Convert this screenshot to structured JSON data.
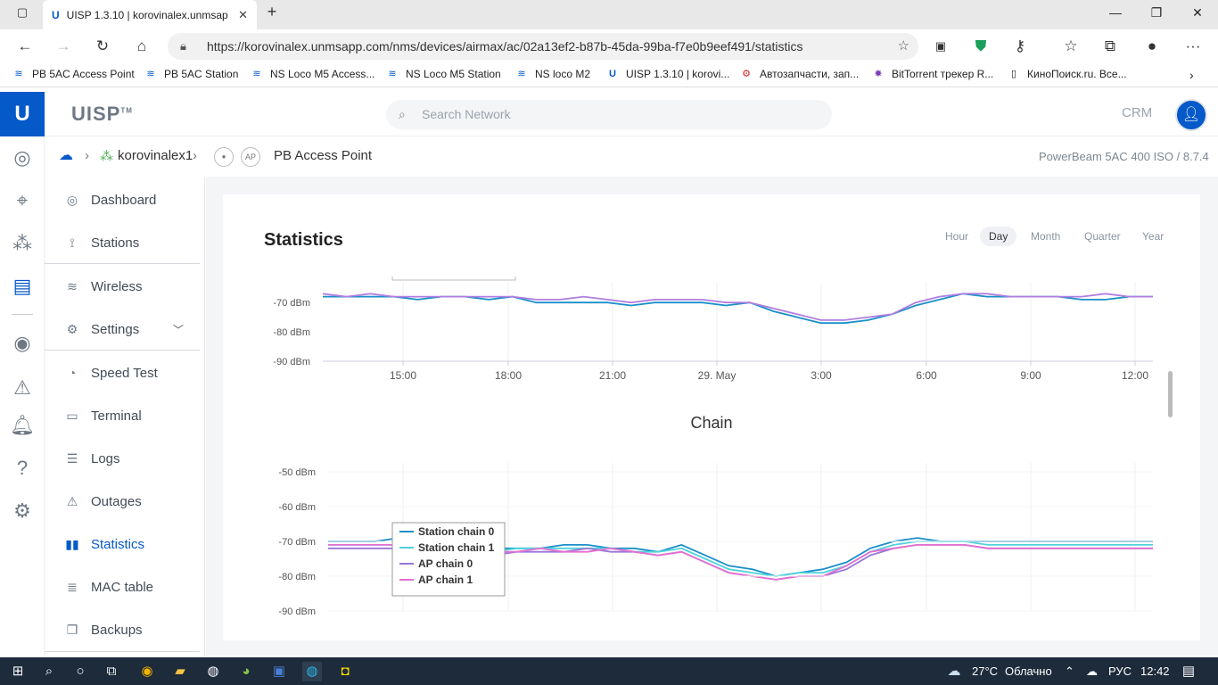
{
  "browser": {
    "tab_title": "UISP 1.3.10 | korovinalex.unmsap",
    "url": "https://korovinalex.unmsapp.com/nms/devices/airmax/ac/02a13ef2-b87b-45da-99ba-f7e0b9eef491/statistics",
    "bookmarks": [
      {
        "label": "PB 5AC Access Point",
        "icon": "wifi-icon"
      },
      {
        "label": "PB 5AC Station",
        "icon": "wifi-icon"
      },
      {
        "label": "NS Loco M5 Access...",
        "icon": "wifi-icon"
      },
      {
        "label": "NS Loco M5 Station",
        "icon": "wifi-icon"
      },
      {
        "label": "NS loco M2",
        "icon": "wifi-icon"
      },
      {
        "label": "UISP 1.3.10 | korovi...",
        "icon": "uisp-icon"
      },
      {
        "label": "Автозапчасти, зап...",
        "icon": "gear-icon"
      },
      {
        "label": "BitTorrent трекер R...",
        "icon": "star-icon"
      },
      {
        "label": "КиноПоиск.ru. Все...",
        "icon": "page-icon"
      }
    ]
  },
  "app": {
    "brand": "UISP",
    "brand_mark": "TM",
    "search_placeholder": "Search Network",
    "crm_label": "CRM",
    "accent": "#0559c9"
  },
  "breadcrumb": {
    "site": "korovinalex1",
    "badge": "AP",
    "device": "PB Access Point",
    "model": "PowerBeam 5AC 400 ISO / 8.7.4"
  },
  "menu": [
    {
      "label": "Dashboard",
      "icon": "dashboard-icon"
    },
    {
      "label": "Stations",
      "icon": "stations-icon"
    },
    {
      "label": "Wireless",
      "icon": "wireless-icon"
    },
    {
      "label": "Settings",
      "icon": "settings-icon"
    },
    {
      "label": "Speed Test",
      "icon": "speedtest-icon"
    },
    {
      "label": "Terminal",
      "icon": "terminal-icon"
    },
    {
      "label": "Logs",
      "icon": "logs-icon"
    },
    {
      "label": "Outages",
      "icon": "outages-icon"
    },
    {
      "label": "Statistics",
      "icon": "statistics-icon",
      "active": true
    },
    {
      "label": "MAC table",
      "icon": "mactable-icon"
    },
    {
      "label": "Backups",
      "icon": "backups-icon"
    }
  ],
  "statistics": {
    "title": "Statistics",
    "ranges": [
      "Hour",
      "Day",
      "Month",
      "Quarter",
      "Year"
    ],
    "active_range": "Day"
  },
  "chart_data": [
    {
      "type": "line",
      "title": "",
      "ylabel": "",
      "y_ticks": [
        "-70 dBm",
        "-80 dBm",
        "-90 dBm"
      ],
      "x_ticks": [
        "15:00",
        "18:00",
        "21:00",
        "29. May",
        "3:00",
        "6:00",
        "9:00",
        "12:00"
      ],
      "series": [
        {
          "color": "#1a8fc9",
          "values": [
            -68,
            -68,
            -68,
            -68,
            -69,
            -68,
            -68,
            -69,
            -68,
            -70,
            -70,
            -70,
            -70,
            -71,
            -70,
            -70,
            -70,
            -71,
            -70,
            -73,
            -75,
            -77,
            -77,
            -76,
            -74,
            -71,
            -69,
            -67,
            -68,
            -68,
            -68,
            -68,
            -69,
            -69,
            -68,
            -68
          ]
        },
        {
          "color": "#b07ee0",
          "values": [
            -67,
            -68,
            -67,
            -68,
            -68,
            -68,
            -68,
            -68,
            -68,
            -69,
            -69,
            -68,
            -69,
            -70,
            -69,
            -69,
            -69,
            -70,
            -70,
            -72,
            -74,
            -76,
            -76,
            -75,
            -74,
            -70,
            -68,
            -67,
            -67,
            -68,
            -68,
            -68,
            -68,
            -67,
            -68,
            -68
          ]
        }
      ]
    },
    {
      "type": "line",
      "title": "Chain",
      "y_ticks": [
        "-50 dBm",
        "-60 dBm",
        "-70 dBm",
        "-80 dBm",
        "-90 dBm"
      ],
      "legend": "top-left",
      "series": [
        {
          "name": "Station chain 0",
          "color": "#1a8fc9",
          "values": [
            -70,
            -70,
            -70,
            -69,
            -70,
            -71,
            -71,
            -72,
            -72,
            -72,
            -71,
            -71,
            -72,
            -72,
            -73,
            -71,
            -74,
            -77,
            -78,
            -80,
            -79,
            -78,
            -76,
            -72,
            -70,
            -69,
            -70,
            -70,
            -70,
            -70,
            -70,
            -70,
            -70,
            -70,
            -70,
            -70
          ]
        },
        {
          "name": "Station chain 1",
          "color": "#4fd3db",
          "values": [
            -71,
            -71,
            -71,
            -71,
            -71,
            -72,
            -72,
            -73,
            -72,
            -72,
            -72,
            -72,
            -72,
            -73,
            -73,
            -72,
            -75,
            -78,
            -79,
            -80,
            -79,
            -79,
            -77,
            -73,
            -71,
            -70,
            -70,
            -70,
            -71,
            -71,
            -71,
            -71,
            -71,
            -71,
            -71,
            -71
          ]
        },
        {
          "name": "AP chain 0",
          "color": "#9b76d8",
          "values": [
            -72,
            -72,
            -72,
            -72,
            -72,
            -73,
            -73,
            -74,
            -73,
            -73,
            -73,
            -72,
            -73,
            -73,
            -74,
            -73,
            -76,
            -79,
            -80,
            -81,
            -80,
            -80,
            -78,
            -74,
            -72,
            -71,
            -71,
            -71,
            -72,
            -72,
            -72,
            -72,
            -72,
            -72,
            -72,
            -72
          ]
        },
        {
          "name": "AP chain 1",
          "color": "#e46fd0",
          "values": [
            -71,
            -71,
            -71,
            -71,
            -71,
            -72,
            -72,
            -73,
            -73,
            -72,
            -73,
            -73,
            -72,
            -73,
            -74,
            -73,
            -76,
            -79,
            -80,
            -81,
            -80,
            -80,
            -77,
            -73,
            -72,
            -71,
            -71,
            -71,
            -72,
            -72,
            -72,
            -72,
            -72,
            -72,
            -72,
            -72
          ]
        }
      ]
    }
  ],
  "taskbar": {
    "temperature": "27°C",
    "weather": "Облачно",
    "lang": "РУС",
    "time": "12:42"
  }
}
